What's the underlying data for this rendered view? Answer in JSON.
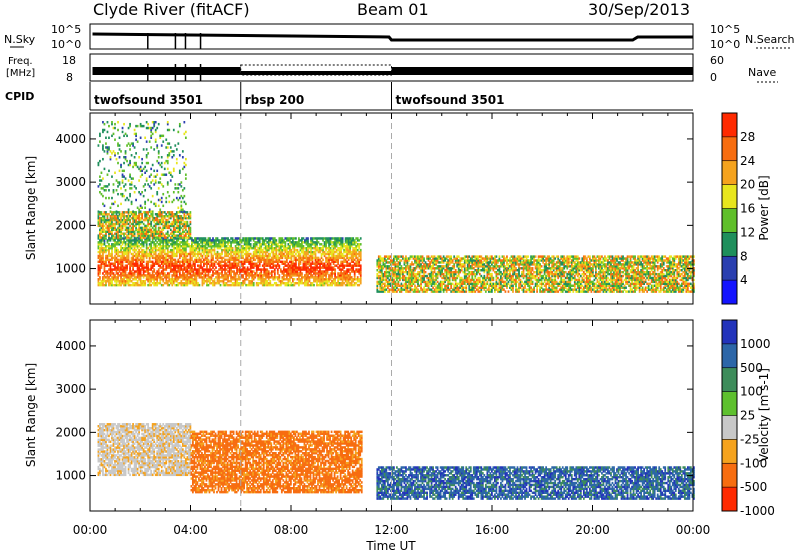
{
  "header": {
    "station": "Clyde River (fitACF)",
    "beam": "Beam 01",
    "date": "30/Sep/2013"
  },
  "nsky_panel": {
    "label": "N.Sky",
    "left_ticks": [
      "10^5",
      "10^0"
    ],
    "right_ticks": [
      "10^5",
      "10^0"
    ],
    "right_label": "N.Search"
  },
  "freq_panel": {
    "label_line1": "Freq.",
    "label_line2": "[MHz]",
    "left_ticks": [
      "18",
      "8"
    ],
    "right_ticks": [
      "60",
      "0"
    ],
    "right_label": "Nave"
  },
  "cpid": {
    "label": "CPID",
    "segments": [
      {
        "name": "twofsound 3501",
        "start_h": 0,
        "end_h": 6
      },
      {
        "name": "rbsp 200",
        "start_h": 6,
        "end_h": 12
      },
      {
        "name": "twofsound 3501",
        "start_h": 12,
        "end_h": 24
      }
    ]
  },
  "x_axis": {
    "label": "Time UT",
    "ticks": [
      "00:00",
      "04:00",
      "08:00",
      "12:00",
      "16:00",
      "20:00",
      "00:00"
    ]
  },
  "chart_data": [
    {
      "type": "heatmap",
      "ylabel": "Slant Range [km]",
      "xlim_hours": [
        0,
        24
      ],
      "ylim": [
        180,
        4600
      ],
      "y_ticks": [
        "1000",
        "2000",
        "3000",
        "4000"
      ],
      "colorbar": {
        "label": "Power [dB]",
        "ticks": [
          "4",
          "8",
          "12",
          "16",
          "20",
          "24",
          "28"
        ],
        "colors": [
          "#1414ff",
          "#2a3fb0",
          "#1f8f5c",
          "#5fbf2a",
          "#e8e61e",
          "#f5a31e",
          "#f76d10",
          "#ff2a00"
        ]
      },
      "regions": [
        {
          "t": [
            0.3,
            10.8
          ],
          "r": [
            600,
            1700
          ],
          "level": "high"
        },
        {
          "t": [
            0.3,
            4.0
          ],
          "r": [
            1700,
            2300
          ],
          "level": "mid"
        },
        {
          "t": [
            0.3,
            3.8
          ],
          "r": [
            2300,
            4400
          ],
          "level": "low-sparse"
        },
        {
          "t": [
            11.4,
            24
          ],
          "r": [
            450,
            1300
          ],
          "level": "mid"
        }
      ]
    },
    {
      "type": "heatmap",
      "ylabel": "Slant Range [km]",
      "xlim_hours": [
        0,
        24
      ],
      "ylim": [
        180,
        4600
      ],
      "y_ticks": [
        "1000",
        "2000",
        "3000",
        "4000"
      ],
      "colorbar": {
        "label": "Velocity [m s-1]",
        "ticks": [
          "1000",
          "500",
          "100",
          "25",
          "-25",
          "-100",
          "-500",
          "-1000"
        ],
        "colors": [
          "#2233bb",
          "#2c66a8",
          "#3d8c5a",
          "#5ec02e",
          "#c8c8c8",
          "#f5a31e",
          "#f76d10",
          "#ff2a00"
        ]
      },
      "regions": [
        {
          "t": [
            0.3,
            4.0
          ],
          "r": [
            1000,
            2200
          ],
          "level": "near-zero"
        },
        {
          "t": [
            4.0,
            10.8
          ],
          "r": [
            600,
            2000
          ],
          "level": "negative"
        },
        {
          "t": [
            11.4,
            24
          ],
          "r": [
            450,
            1200
          ],
          "level": "positive"
        }
      ]
    }
  ]
}
